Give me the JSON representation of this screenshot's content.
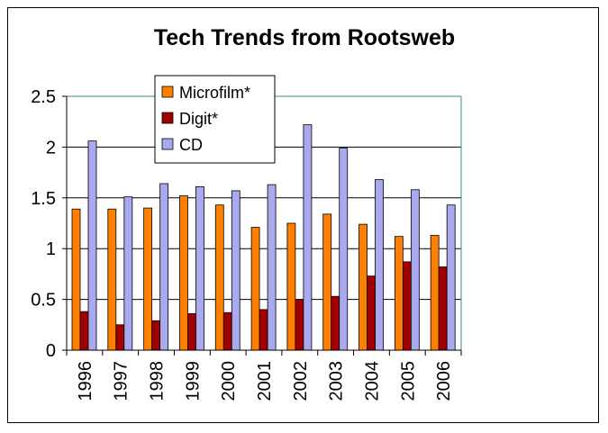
{
  "chart_data": {
    "type": "bar",
    "title": "Tech Trends from Rootsweb",
    "xlabel": "",
    "ylabel": "",
    "ylim": [
      0,
      2.5
    ],
    "yticks": [
      "0",
      "0.5",
      "1",
      "1.5",
      "2",
      "2.5"
    ],
    "yticks_values": [
      0,
      0.5,
      1,
      1.5,
      2,
      2.5
    ],
    "categories": [
      "1996",
      "1997",
      "1998",
      "1999",
      "2000",
      "2001",
      "2002",
      "2003",
      "2004",
      "2005",
      "2006"
    ],
    "series": [
      {
        "name": "Microfilm*",
        "color": "#ff8000",
        "values": [
          1.39,
          1.39,
          1.4,
          1.52,
          1.43,
          1.21,
          1.25,
          1.34,
          1.24,
          1.12,
          1.13
        ]
      },
      {
        "name": "Digit*",
        "color": "#a00000",
        "values": [
          0.38,
          0.25,
          0.29,
          0.36,
          0.37,
          0.4,
          0.5,
          0.53,
          0.73,
          0.87,
          0.82
        ]
      },
      {
        "name": "CD",
        "color": "#a9a9f0",
        "values": [
          2.06,
          1.51,
          1.64,
          1.61,
          1.57,
          1.63,
          2.22,
          1.99,
          1.68,
          1.58,
          1.43
        ]
      }
    ],
    "grid": true,
    "legend_position": "top-left"
  }
}
